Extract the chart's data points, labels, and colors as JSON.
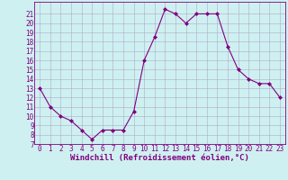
{
  "x": [
    0,
    1,
    2,
    3,
    4,
    5,
    6,
    7,
    8,
    9,
    10,
    11,
    12,
    13,
    14,
    15,
    16,
    17,
    18,
    19,
    20,
    21,
    22,
    23
  ],
  "y": [
    13,
    11,
    10,
    9.5,
    8.5,
    7.5,
    8.5,
    8.5,
    8.5,
    10.5,
    16,
    18.5,
    21.5,
    21,
    20,
    21,
    21,
    21,
    17.5,
    15,
    14,
    13.5,
    13.5,
    12
  ],
  "line_color": "#800080",
  "marker": "D",
  "marker_size": 2,
  "bg_color": "#cff0f0",
  "grid_color": "#aaaacc",
  "xlabel": "Windchill (Refroidissement éolien,°C)",
  "ylim": [
    7,
    22
  ],
  "xlim": [
    -0.5,
    23.5
  ],
  "yticks": [
    7,
    8,
    9,
    10,
    11,
    12,
    13,
    14,
    15,
    16,
    17,
    18,
    19,
    20,
    21
  ],
  "xticks": [
    0,
    1,
    2,
    3,
    4,
    5,
    6,
    7,
    8,
    9,
    10,
    11,
    12,
    13,
    14,
    15,
    16,
    17,
    18,
    19,
    20,
    21,
    22,
    23
  ],
  "tick_fontsize": 5.5,
  "xlabel_fontsize": 6.5
}
